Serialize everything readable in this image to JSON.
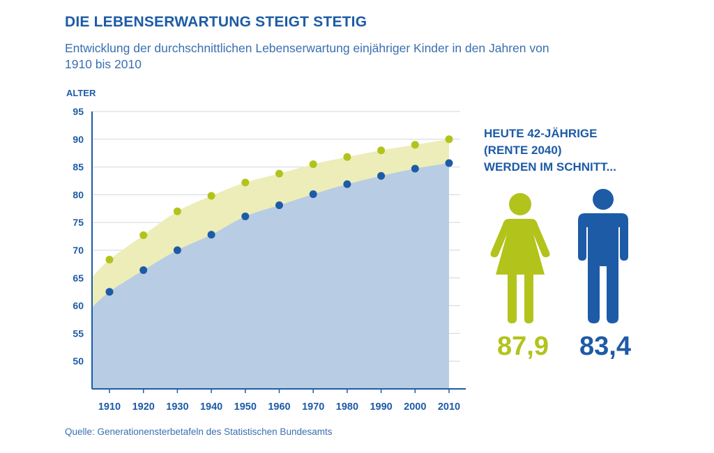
{
  "header": {
    "title": "DIE LEBENSERWARTUNG STEIGT STETIG",
    "subtitle": "Entwicklung der durchschnittlichen Lebenserwartung einjähriger Kinder in den Jahren von 1910 bis 2010"
  },
  "source": "Quelle: Generationensterbetafeln des Statistischen Bundesamts",
  "colors": {
    "primary_blue": "#1d5ba6",
    "lime": "#b2c31c",
    "lime_area": "#ecedb8",
    "blue_area": "#b8cce4"
  },
  "chart_data": {
    "type": "scatter",
    "title": "DIE LEBENSERWARTUNG STEIGT STETIG",
    "subtitle": "Entwicklung der durchschnittlichen Lebenserwartung einjähriger Kinder in den Jahren von 1910 bis 2010",
    "ylabel": "ALTER",
    "xlabel": "",
    "x": [
      1910,
      1920,
      1930,
      1940,
      1950,
      1960,
      1970,
      1980,
      1990,
      2000,
      2010
    ],
    "ylim": [
      45,
      95
    ],
    "yticks": [
      50,
      55,
      60,
      65,
      70,
      75,
      80,
      85,
      90,
      95
    ],
    "grid": "horizontal",
    "series": [
      {
        "color": "#b2c31c",
        "values": [
          68.3,
          72.7,
          77.0,
          79.8,
          82.2,
          83.8,
          85.5,
          86.8,
          88.0,
          89.0,
          90.0
        ]
      },
      {
        "color": "#1d5ba6",
        "values": [
          62.5,
          66.4,
          70.0,
          72.8,
          76.1,
          78.1,
          80.1,
          81.9,
          83.4,
          84.7,
          85.7
        ]
      }
    ]
  },
  "side_panel": {
    "heading_lines": [
      "HEUTE 42-JÄHRIGE",
      "(RENTE 2040)",
      "WERDEN IM SCHNITT..."
    ],
    "woman": {
      "icon": "woman-icon",
      "value": "87,9"
    },
    "man": {
      "icon": "man-icon",
      "value": "83,4"
    }
  }
}
